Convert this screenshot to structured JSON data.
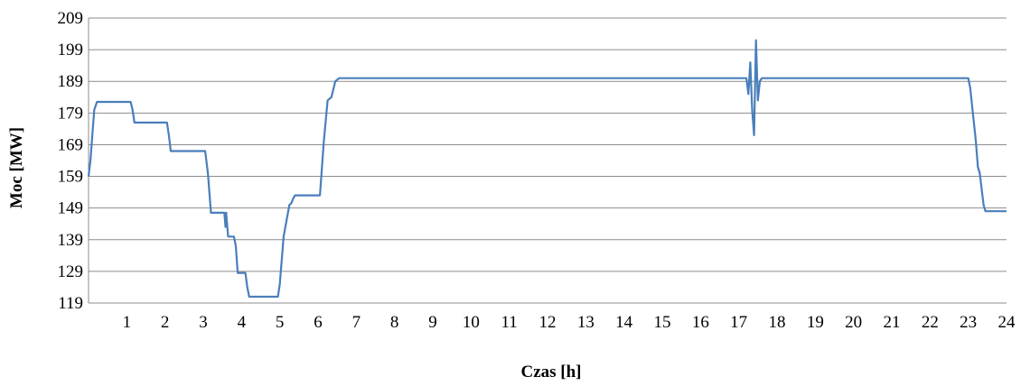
{
  "chart_data": {
    "type": "line",
    "title": "",
    "xlabel": "Czas [h]",
    "ylabel": "Moc [MW]",
    "xlim": [
      0,
      24
    ],
    "ylim": [
      119,
      209
    ],
    "x_ticks": [
      "1",
      "2",
      "3",
      "4",
      "5",
      "6",
      "7",
      "8",
      "9",
      "10",
      "11",
      "12",
      "13",
      "14",
      "15",
      "16",
      "17",
      "18",
      "19",
      "20",
      "21",
      "22",
      "23",
      "24"
    ],
    "y_ticks": [
      "209",
      "199",
      "189",
      "179",
      "169",
      "159",
      "149",
      "139",
      "129",
      "119"
    ],
    "grid": true,
    "legend": "none",
    "series_color": "#4a7ebb",
    "series": [
      {
        "x": [
          0,
          0.05,
          0.15,
          0.22,
          1.1,
          1.15,
          1.2,
          2.05,
          2.1,
          2.15,
          3.05,
          3.12,
          3.2,
          3.55,
          3.58,
          3.6,
          3.6,
          3.65,
          3.8,
          3.85,
          3.9,
          4.1,
          4.15,
          4.2,
          4.95,
          5.0,
          5.1,
          5.25,
          5.3,
          5.35,
          5.4,
          6.05,
          6.15,
          6.25,
          6.35,
          6.45,
          6.55,
          17.2,
          17.25,
          17.3,
          17.35,
          17.4,
          17.45,
          17.5,
          17.55,
          17.6,
          17.7,
          23.0,
          23.05,
          23.2,
          23.25,
          23.3,
          23.4,
          23.45,
          24.0
        ],
        "y": [
          159,
          164,
          180,
          182.5,
          182.5,
          180,
          176,
          176,
          172,
          167,
          167,
          160,
          147.5,
          147.5,
          143,
          147.5,
          147,
          140,
          140,
          137,
          128.5,
          128.5,
          124,
          121,
          121,
          125,
          140,
          150,
          150.5,
          152,
          153,
          153,
          170,
          183,
          184,
          189,
          190,
          190,
          185,
          195,
          180,
          172,
          202,
          183,
          189,
          190,
          190,
          190,
          187,
          170,
          162,
          160,
          150,
          148,
          148
        ]
      }
    ]
  }
}
